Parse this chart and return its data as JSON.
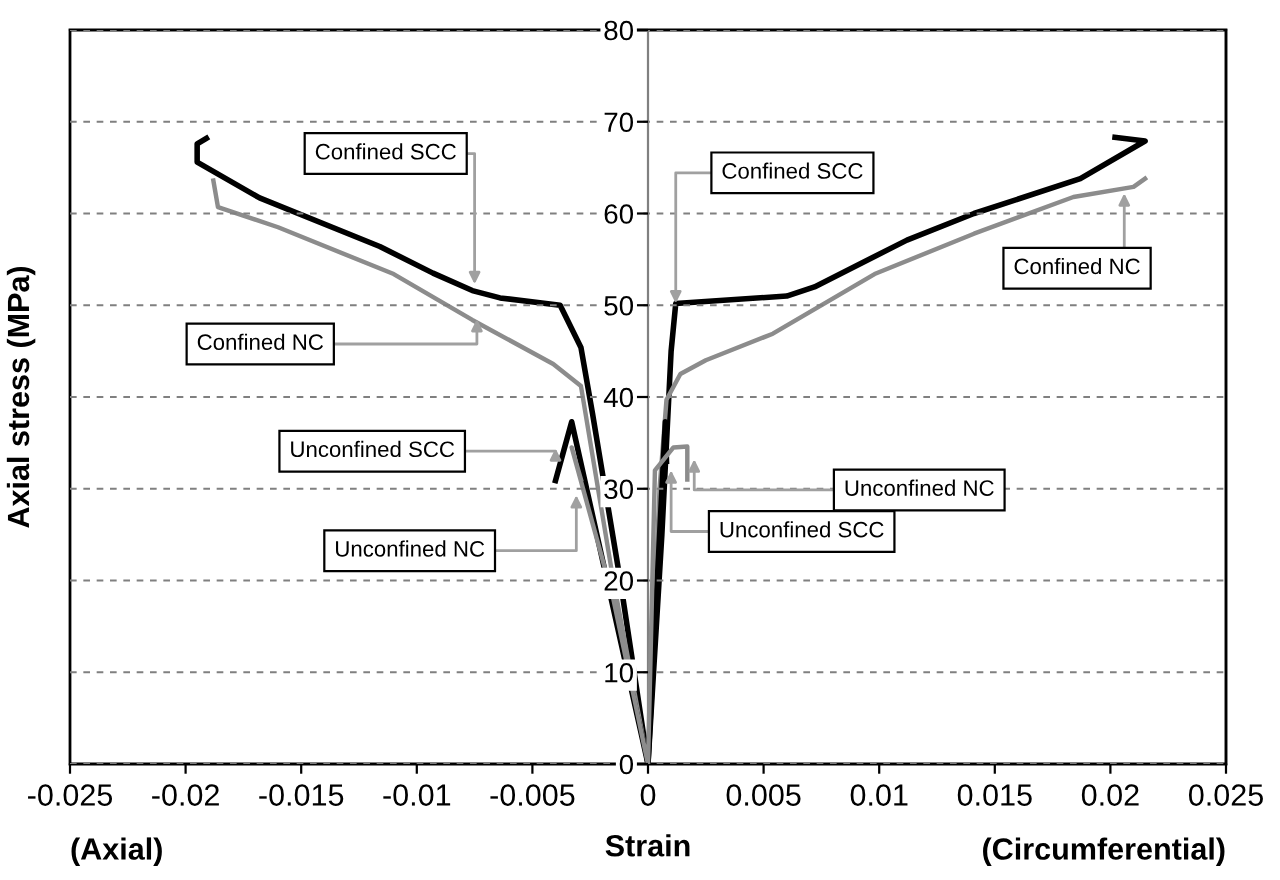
{
  "chart_data": {
    "type": "line",
    "xlabel": "Strain",
    "ylabel": "Axial stress (MPa)",
    "xlim": [
      -0.025,
      0.025
    ],
    "xticks": [
      -0.025,
      -0.02,
      -0.015,
      -0.01,
      -0.005,
      0,
      0.005,
      0.01,
      0.015,
      0.02,
      0.025
    ],
    "ylim": [
      0,
      80
    ],
    "yticks": [
      0,
      10,
      20,
      30,
      40,
      50,
      60,
      70,
      80
    ],
    "grid": "y",
    "legend": false,
    "marker": "none",
    "line_style": "solid",
    "series": [
      {
        "color": "#000000",
        "x": [
          -0.0191,
          -0.0195,
          -0.0195,
          -0.0168,
          -0.0116,
          -0.0093,
          -0.0076,
          -0.0064,
          -0.0038,
          -0.0029,
          -0.0024,
          -0.0012,
          0,
          0.0006,
          0.001,
          0.0012,
          0.006,
          0.0072,
          0.0112,
          0.0141,
          0.0187,
          0.0215,
          0.0202
        ],
        "values": [
          68.2,
          67.6,
          65.6,
          61.7,
          56.4,
          53.5,
          51.6,
          50.8,
          50.0,
          45.4,
          38.2,
          20,
          0,
          25,
          45,
          50.2,
          51.0,
          52.0,
          57.1,
          60.0,
          63.8,
          67.9,
          68.3
        ]
      },
      {
        "color": "#8c8c8c",
        "x": [
          -0.0188,
          -0.0186,
          -0.016,
          -0.011,
          -0.0076,
          -0.0041,
          -0.0029,
          -0.0015,
          0,
          0.0005,
          0.0008,
          0.0014,
          0.0025,
          0.0054,
          0.0098,
          0.0141,
          0.0184,
          0.021,
          0.0215
        ],
        "values": [
          63.6,
          60.7,
          58.5,
          53.4,
          48.4,
          43.6,
          41.2,
          20,
          0,
          30,
          39.7,
          42.5,
          44.0,
          46.9,
          53.4,
          57.8,
          61.8,
          62.9,
          63.8
        ]
      },
      {
        "color": "#000000",
        "x": [
          -0.004,
          -0.0033,
          0,
          0.00075,
          0.0008
        ],
        "values": [
          30.9,
          37.3,
          0,
          37.3,
          33
        ]
      },
      {
        "color": "#8c8c8c",
        "x": [
          -0.0029,
          -0.0033,
          -0.0015,
          0,
          0.0003,
          0.0011,
          0.0017,
          0.0017
        ],
        "values": [
          31,
          34.5,
          18,
          0,
          32,
          34.5,
          34.6,
          31
        ]
      }
    ],
    "annotations": [
      {
        "text": "Confined SCC",
        "x": -0.0075,
        "y": 52.3
      },
      {
        "text": "Confined SCC",
        "x": 0.0012,
        "y": 50.2
      },
      {
        "text": "Confined NC",
        "x": -0.0074,
        "y": 48.5
      },
      {
        "text": "Confined NC",
        "x": 0.0206,
        "y": 62.2
      },
      {
        "text": "Unconfined SCC",
        "x": -0.004,
        "y": 34.4
      },
      {
        "text": "Unconfined NC",
        "x": -0.0031,
        "y": 29.3
      },
      {
        "text": "Unconfined NC",
        "x": 0.002,
        "y": 33.2
      },
      {
        "text": "Unconfined SCC",
        "x": 0.001,
        "y": 32.0
      },
      "(Axial)",
      "(Circumferential)"
    ]
  }
}
